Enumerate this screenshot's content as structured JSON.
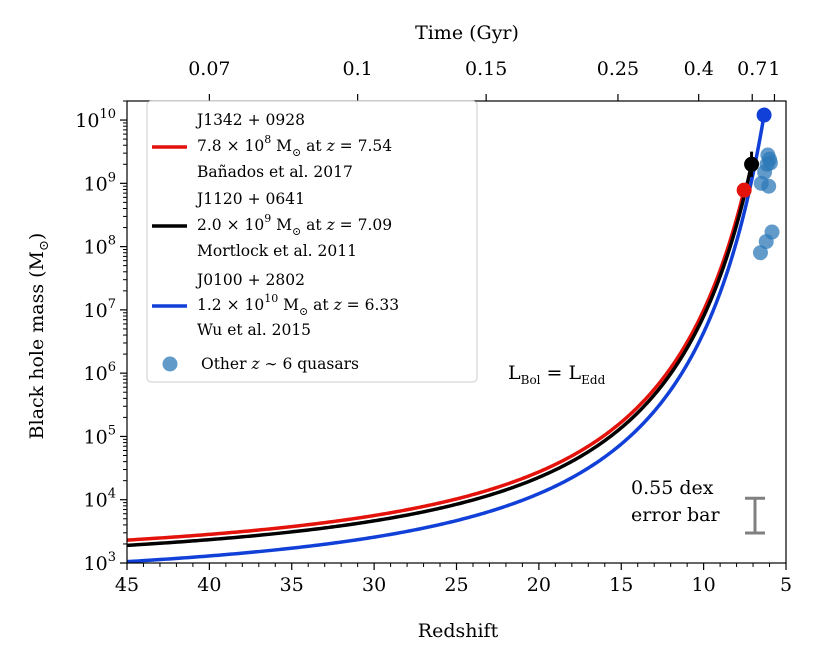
{
  "chart_data": {
    "type": "line",
    "xlabel": "Redshift",
    "ylabel": "Black hole mass (M",
    "ylabel_symbol": "⊙",
    "ylabel_close": ")",
    "xlim": [
      45,
      5
    ],
    "ylim": [
      1000,
      20000000000
    ],
    "yscale": "log",
    "x_ticks": [
      45,
      40,
      35,
      30,
      25,
      20,
      15,
      10,
      5
    ],
    "y_tick_exponents": [
      3,
      4,
      5,
      6,
      7,
      8,
      9,
      10
    ],
    "y_tick_base": "10",
    "top_axis": {
      "label": "Time (Gyr)",
      "ticks": [
        {
          "label": "0.07",
          "z": 40.0
        },
        {
          "label": "0.1",
          "z": 31.0
        },
        {
          "label": "0.15",
          "z": 23.2
        },
        {
          "label": "0.25",
          "z": 15.2
        },
        {
          "label": "0.4",
          "z": 10.3
        },
        {
          "label": "0.7",
          "z": 7.05
        },
        {
          "label": "1",
          "z": 5.7
        }
      ]
    },
    "series": [
      {
        "key": "j1342",
        "name": "J1342 + 0928",
        "mass_text": "7.8 × 10",
        "mass_exp": "8",
        "mass_unit": " M",
        "sun": "⊙",
        "redshift_text": " at ",
        "z_symbol": "z",
        "z_value": " = 7.54",
        "reference": "Bañados et al. 2017",
        "color": "#e3120b",
        "final_mass": 780000000,
        "final_z": 7.54,
        "start_mass": 2300
      },
      {
        "key": "j1120",
        "name": "J1120 + 0641",
        "mass_text": "2.0 × 10",
        "mass_exp": "9",
        "mass_unit": " M",
        "sun": "⊙",
        "redshift_text": " at ",
        "z_symbol": "z",
        "z_value": " = 7.09",
        "reference": "Mortlock et al. 2011",
        "color": "#000000",
        "final_mass": 2000000000,
        "final_z": 7.09,
        "start_mass": 1900
      },
      {
        "key": "j0100",
        "name": "J0100 + 2802",
        "mass_text": "1.2 × 10",
        "mass_exp": "10",
        "mass_unit": " M",
        "sun": "⊙",
        "redshift_text": " at ",
        "z_symbol": "z",
        "z_value": " = 6.33",
        "reference": "Wu et al. 2015",
        "color": "#1140d8",
        "final_mass": 12000000000,
        "final_z": 6.33,
        "start_mass": 1050
      }
    ],
    "other_quasars": {
      "label_pre": "Other ",
      "label_z": "z",
      "label_post": " ∼ 6 quasars",
      "color": "#2e7ab8",
      "points": [
        {
          "z": 6.1,
          "mass": 2800000000
        },
        {
          "z": 6.0,
          "mass": 2400000000
        },
        {
          "z": 6.15,
          "mass": 2000000000
        },
        {
          "z": 5.95,
          "mass": 2100000000
        },
        {
          "z": 6.3,
          "mass": 1500000000
        },
        {
          "z": 6.5,
          "mass": 1000000000
        },
        {
          "z": 6.05,
          "mass": 900000000
        },
        {
          "z": 5.85,
          "mass": 170000000
        },
        {
          "z": 6.2,
          "mass": 120000000
        },
        {
          "z": 6.55,
          "mass": 80000000
        }
      ]
    },
    "annotations": {
      "eddington_lhs": "L",
      "eddington_lhs_sub": "Bol",
      "eddington_eq": " = L",
      "eddington_rhs_sub": "Edd",
      "error_bar_line1": "0.55 dex",
      "error_bar_line2": "error bar",
      "error_bar_dex": 0.55,
      "error_bar_color": "#808080"
    },
    "legend_position": "upper-left",
    "grid": false
  }
}
